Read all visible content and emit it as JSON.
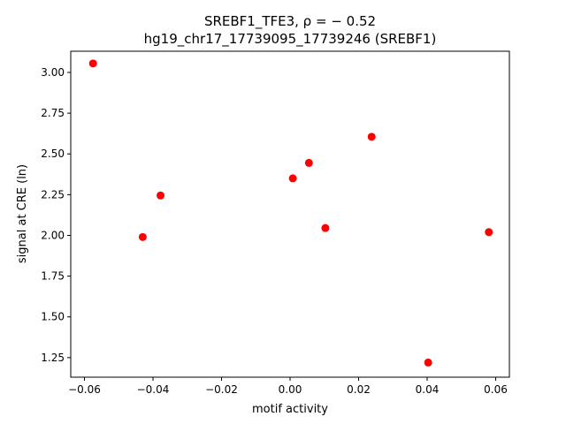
{
  "chart_data": {
    "type": "scatter",
    "title_line1": "SREBF1_TFE3, ρ = − 0.52",
    "title_line2": "hg19_chr17_17739095_17739246 (SREBF1)",
    "xlabel": "motif activity",
    "ylabel": "signal at CRE (ln)",
    "xlim": [
      -0.064,
      0.064
    ],
    "ylim": [
      1.13,
      3.13
    ],
    "xticks": [
      -0.06,
      -0.04,
      -0.02,
      0.0,
      0.02,
      0.04,
      0.06
    ],
    "xtick_labels": [
      "−0.06",
      "−0.04",
      "−0.02",
      "0.00",
      "0.02",
      "0.04",
      "0.06"
    ],
    "yticks": [
      1.25,
      1.5,
      1.75,
      2.0,
      2.25,
      2.5,
      2.75,
      3.0
    ],
    "ytick_labels": [
      "1.25",
      "1.50",
      "1.75",
      "2.00",
      "2.25",
      "2.50",
      "2.75",
      "3.00"
    ],
    "marker_color": "#ff0000",
    "points": [
      {
        "x": -0.0575,
        "y": 3.055
      },
      {
        "x": -0.043,
        "y": 1.99
      },
      {
        "x": -0.0378,
        "y": 2.245
      },
      {
        "x": 0.0008,
        "y": 2.35
      },
      {
        "x": 0.0055,
        "y": 2.445
      },
      {
        "x": 0.0103,
        "y": 2.045
      },
      {
        "x": 0.0238,
        "y": 2.605
      },
      {
        "x": 0.0403,
        "y": 1.22
      },
      {
        "x": 0.058,
        "y": 2.02
      }
    ],
    "grid": false,
    "legend": "none"
  }
}
